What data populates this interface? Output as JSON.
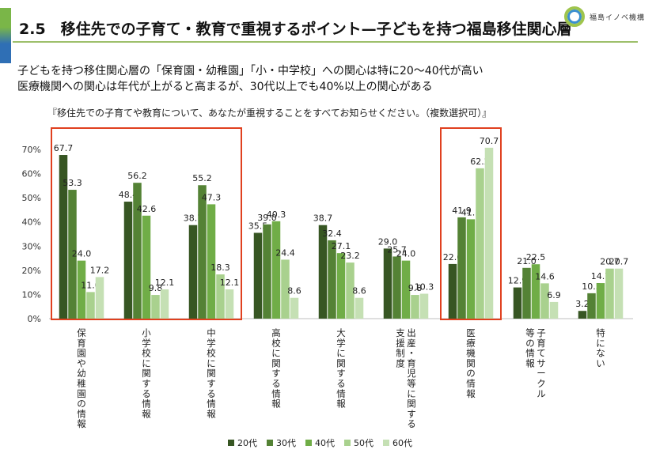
{
  "header": {
    "title": "2.5　移住先での子育て・教育で重視するポイント—子どもを持つ福島移住関心層",
    "logo_text": "福島イノベ機構"
  },
  "lead": [
    "子どもを持つ移住関心層の「保育園・幼稚園」「小・中学校」への関心は特に20～40代が高い",
    "医療機関への関心は年代が上がると高まるが、30代以上でも40%以上の関心がある"
  ],
  "question": "『移住先での子育てや教育について、あなたが重視することをすべてお知らせください。（複数選択可）』",
  "colors": {
    "accent_red": "#e0401f",
    "series": [
      "#375623",
      "#548235",
      "#70ad47",
      "#a9d18e",
      "#c5e0b4"
    ]
  },
  "chart_data": {
    "type": "bar",
    "ylim": [
      0,
      70
    ],
    "yticks": [
      "0%",
      "10%",
      "20%",
      "30%",
      "40%",
      "50%",
      "60%",
      "70%"
    ],
    "categories": [
      "保育園や幼稚園の情報",
      "小学校に関する情報",
      "中学校に関する情報",
      "高校に関する情報",
      "大学に関する情報",
      "出産・育児等に関する支援制度",
      "医療機関の情報",
      "子育てサークル等の情報",
      "特にない"
    ],
    "category_lines": [
      [
        "保育園や幼稚園の情報"
      ],
      [
        "小学校に関する情報"
      ],
      [
        "中学校に関する情報"
      ],
      [
        "高校に関する情報"
      ],
      [
        "大学に関する情報"
      ],
      [
        "出産・育児等に関する",
        "支援制度"
      ],
      [
        "医療機関の情報"
      ],
      [
        "子育てサークル",
        "等の情報"
      ],
      [
        "特にない"
      ]
    ],
    "series": [
      {
        "name": "20代",
        "values": [
          67.7,
          48.4,
          38.7,
          35.5,
          38.7,
          29.0,
          22.6,
          12.9,
          3.2
        ]
      },
      {
        "name": "30代",
        "values": [
          53.3,
          56.2,
          55.2,
          39.0,
          32.4,
          25.7,
          41.9,
          21.0,
          10.5
        ]
      },
      {
        "name": "40代",
        "values": [
          24.0,
          42.6,
          47.3,
          40.3,
          27.1,
          24.0,
          41.1,
          22.5,
          14.7
        ]
      },
      {
        "name": "50代",
        "values": [
          11.0,
          9.8,
          18.3,
          24.4,
          23.2,
          9.8,
          62.2,
          14.6,
          20.7
        ]
      },
      {
        "name": "60代",
        "values": [
          17.2,
          12.1,
          12.1,
          8.6,
          8.6,
          10.3,
          70.7,
          6.9,
          20.7
        ]
      }
    ],
    "highlighted_categories": [
      0,
      1,
      2,
      6
    ]
  }
}
